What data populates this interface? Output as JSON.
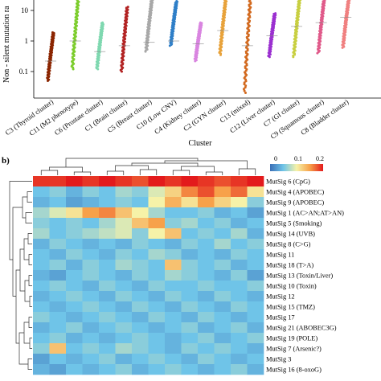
{
  "panel_b_label": "b)",
  "chart_data": [
    {
      "type": "scatter",
      "title": "",
      "ylabel": "Non - silent mutation ra",
      "xlabel": "Cluster",
      "yscale": "log",
      "ylim": [
        0.02,
        22
      ],
      "yticks": [
        "10",
        "1",
        "0.1"
      ],
      "categories": [
        "C3 (Thyroid cluster)",
        "C11 (M2 phenotype)",
        "C6 (Prostate cluster)",
        "C1 (Brain cluster)",
        "C5 (Breast cluster)",
        "C10 (Low CNV)",
        "C4 (Kidney cluster)",
        "C2 (GYN cluster)",
        "C13 (mixed)",
        "C12 (Liver cluster)",
        "C7 (GI cluster)",
        "C9 (Squamous cluster)",
        "C8 (Bladder cluster)"
      ],
      "series": [
        {
          "color": "#8B2500",
          "min": 0.05,
          "max": 1.9,
          "median": 0.22
        },
        {
          "color": "#7CCD2C",
          "min": 0.12,
          "max": 22,
          "median": 1.0
        },
        {
          "color": "#7FD8B0",
          "min": 0.12,
          "max": 4.0,
          "median": 0.45
        },
        {
          "color": "#B22222",
          "min": 0.1,
          "max": 13,
          "median": 0.7
        },
        {
          "color": "#A8A8A8",
          "min": 0.45,
          "max": 22,
          "median": 0.9
        },
        {
          "color": "#2F7FC8",
          "min": 0.7,
          "max": 20,
          "median": 1.0
        },
        {
          "color": "#D985E0",
          "min": 0.22,
          "max": 4.0,
          "median": 0.8
        },
        {
          "color": "#E8A23A",
          "min": 0.35,
          "max": 22,
          "median": 2.2
        },
        {
          "color": "#D2691E",
          "min": 0.02,
          "max": 22,
          "median": 0.7
        },
        {
          "color": "#9B30D0",
          "min": 0.3,
          "max": 8.0,
          "median": 1.5
        },
        {
          "color": "#C8CF40",
          "min": 0.3,
          "max": 22,
          "median": 3.0
        },
        {
          "color": "#E05A8A",
          "min": 0.4,
          "max": 22,
          "median": 4.0
        },
        {
          "color": "#F08080",
          "min": 0.6,
          "max": 22,
          "median": 6.0
        }
      ]
    },
    {
      "type": "heatmap",
      "colorbar": {
        "min": 0,
        "max": 0.2,
        "ticks": [
          "0",
          "0.1",
          "0.2"
        ]
      },
      "rows": [
        "MutSig 6 (CpG)",
        "MutSig 4 (APOBEC)",
        "MutSig 9 (APOBEC)",
        "MutSig 1 (AC>AN;AT>AN)",
        "MutSig 5 (Smoking)",
        "MutSig 14 (UVB)",
        "MutSig 8 (C>G)",
        "MutSig 11",
        "MutSig 18 (T>A)",
        "MutSig 13 (Toxin/Liver)",
        "MutSig 10 (Toxin)",
        "MutSig 12",
        "MutSig 15 (TMZ)",
        "MutSig 17",
        "MutSig 21 (ABOBEC3G)",
        "MutSig 19 (POLE)",
        "MutSig 7 (Arsenic?)",
        "MutSig 3",
        "MutSig 16 (8-oxoG)"
      ],
      "values": [
        [
          0.19,
          0.19,
          0.2,
          0.19,
          0.2,
          0.19,
          0.18,
          0.2,
          0.19,
          0.2,
          0.19,
          0.18,
          0.19,
          0.2
        ],
        [
          0.05,
          0.06,
          0.04,
          0.06,
          0.05,
          0.07,
          0.06,
          0.09,
          0.12,
          0.16,
          0.18,
          0.15,
          0.17,
          0.11
        ],
        [
          0.04,
          0.05,
          0.03,
          0.04,
          0.05,
          0.06,
          0.05,
          0.1,
          0.14,
          0.11,
          0.15,
          0.12,
          0.1,
          0.06
        ],
        [
          0.07,
          0.09,
          0.11,
          0.15,
          0.16,
          0.13,
          0.1,
          0.07,
          0.05,
          0.05,
          0.06,
          0.04,
          0.05,
          0.03
        ],
        [
          0.06,
          0.05,
          0.06,
          0.05,
          0.07,
          0.09,
          0.13,
          0.15,
          0.06,
          0.07,
          0.05,
          0.06,
          0.04,
          0.05
        ],
        [
          0.07,
          0.05,
          0.06,
          0.07,
          0.08,
          0.09,
          0.06,
          0.1,
          0.13,
          0.05,
          0.06,
          0.05,
          0.07,
          0.04
        ],
        [
          0.04,
          0.06,
          0.05,
          0.04,
          0.05,
          0.04,
          0.06,
          0.05,
          0.04,
          0.06,
          0.05,
          0.07,
          0.05,
          0.06
        ],
        [
          0.05,
          0.04,
          0.06,
          0.05,
          0.04,
          0.06,
          0.05,
          0.07,
          0.06,
          0.04,
          0.05,
          0.04,
          0.06,
          0.05
        ],
        [
          0.05,
          0.06,
          0.04,
          0.06,
          0.05,
          0.07,
          0.06,
          0.05,
          0.13,
          0.06,
          0.05,
          0.06,
          0.04,
          0.05
        ],
        [
          0.04,
          0.03,
          0.05,
          0.06,
          0.05,
          0.04,
          0.06,
          0.05,
          0.07,
          0.06,
          0.05,
          0.04,
          0.06,
          0.03
        ],
        [
          0.05,
          0.06,
          0.05,
          0.04,
          0.06,
          0.05,
          0.04,
          0.06,
          0.05,
          0.05,
          0.06,
          0.05,
          0.05,
          0.06
        ],
        [
          0.04,
          0.05,
          0.06,
          0.05,
          0.04,
          0.06,
          0.05,
          0.04,
          0.06,
          0.05,
          0.04,
          0.06,
          0.05,
          0.04
        ],
        [
          0.05,
          0.04,
          0.05,
          0.06,
          0.05,
          0.04,
          0.06,
          0.05,
          0.04,
          0.06,
          0.05,
          0.04,
          0.06,
          0.05
        ],
        [
          0.06,
          0.05,
          0.04,
          0.05,
          0.06,
          0.05,
          0.04,
          0.06,
          0.05,
          0.04,
          0.06,
          0.05,
          0.04,
          0.05
        ],
        [
          0.04,
          0.05,
          0.06,
          0.04,
          0.05,
          0.06,
          0.05,
          0.04,
          0.05,
          0.06,
          0.04,
          0.05,
          0.06,
          0.04
        ],
        [
          0.05,
          0.06,
          0.04,
          0.05,
          0.04,
          0.05,
          0.06,
          0.05,
          0.04,
          0.05,
          0.06,
          0.04,
          0.05,
          0.06
        ],
        [
          0.06,
          0.13,
          0.05,
          0.06,
          0.05,
          0.07,
          0.06,
          0.05,
          0.04,
          0.06,
          0.05,
          0.06,
          0.05,
          0.04
        ],
        [
          0.03,
          0.05,
          0.04,
          0.05,
          0.06,
          0.04,
          0.05,
          0.06,
          0.05,
          0.04,
          0.06,
          0.05,
          0.04,
          0.05
        ],
        [
          0.04,
          0.03,
          0.05,
          0.04,
          0.05,
          0.06,
          0.04,
          0.05,
          0.06,
          0.05,
          0.04,
          0.05,
          0.06,
          0.04
        ]
      ]
    }
  ]
}
